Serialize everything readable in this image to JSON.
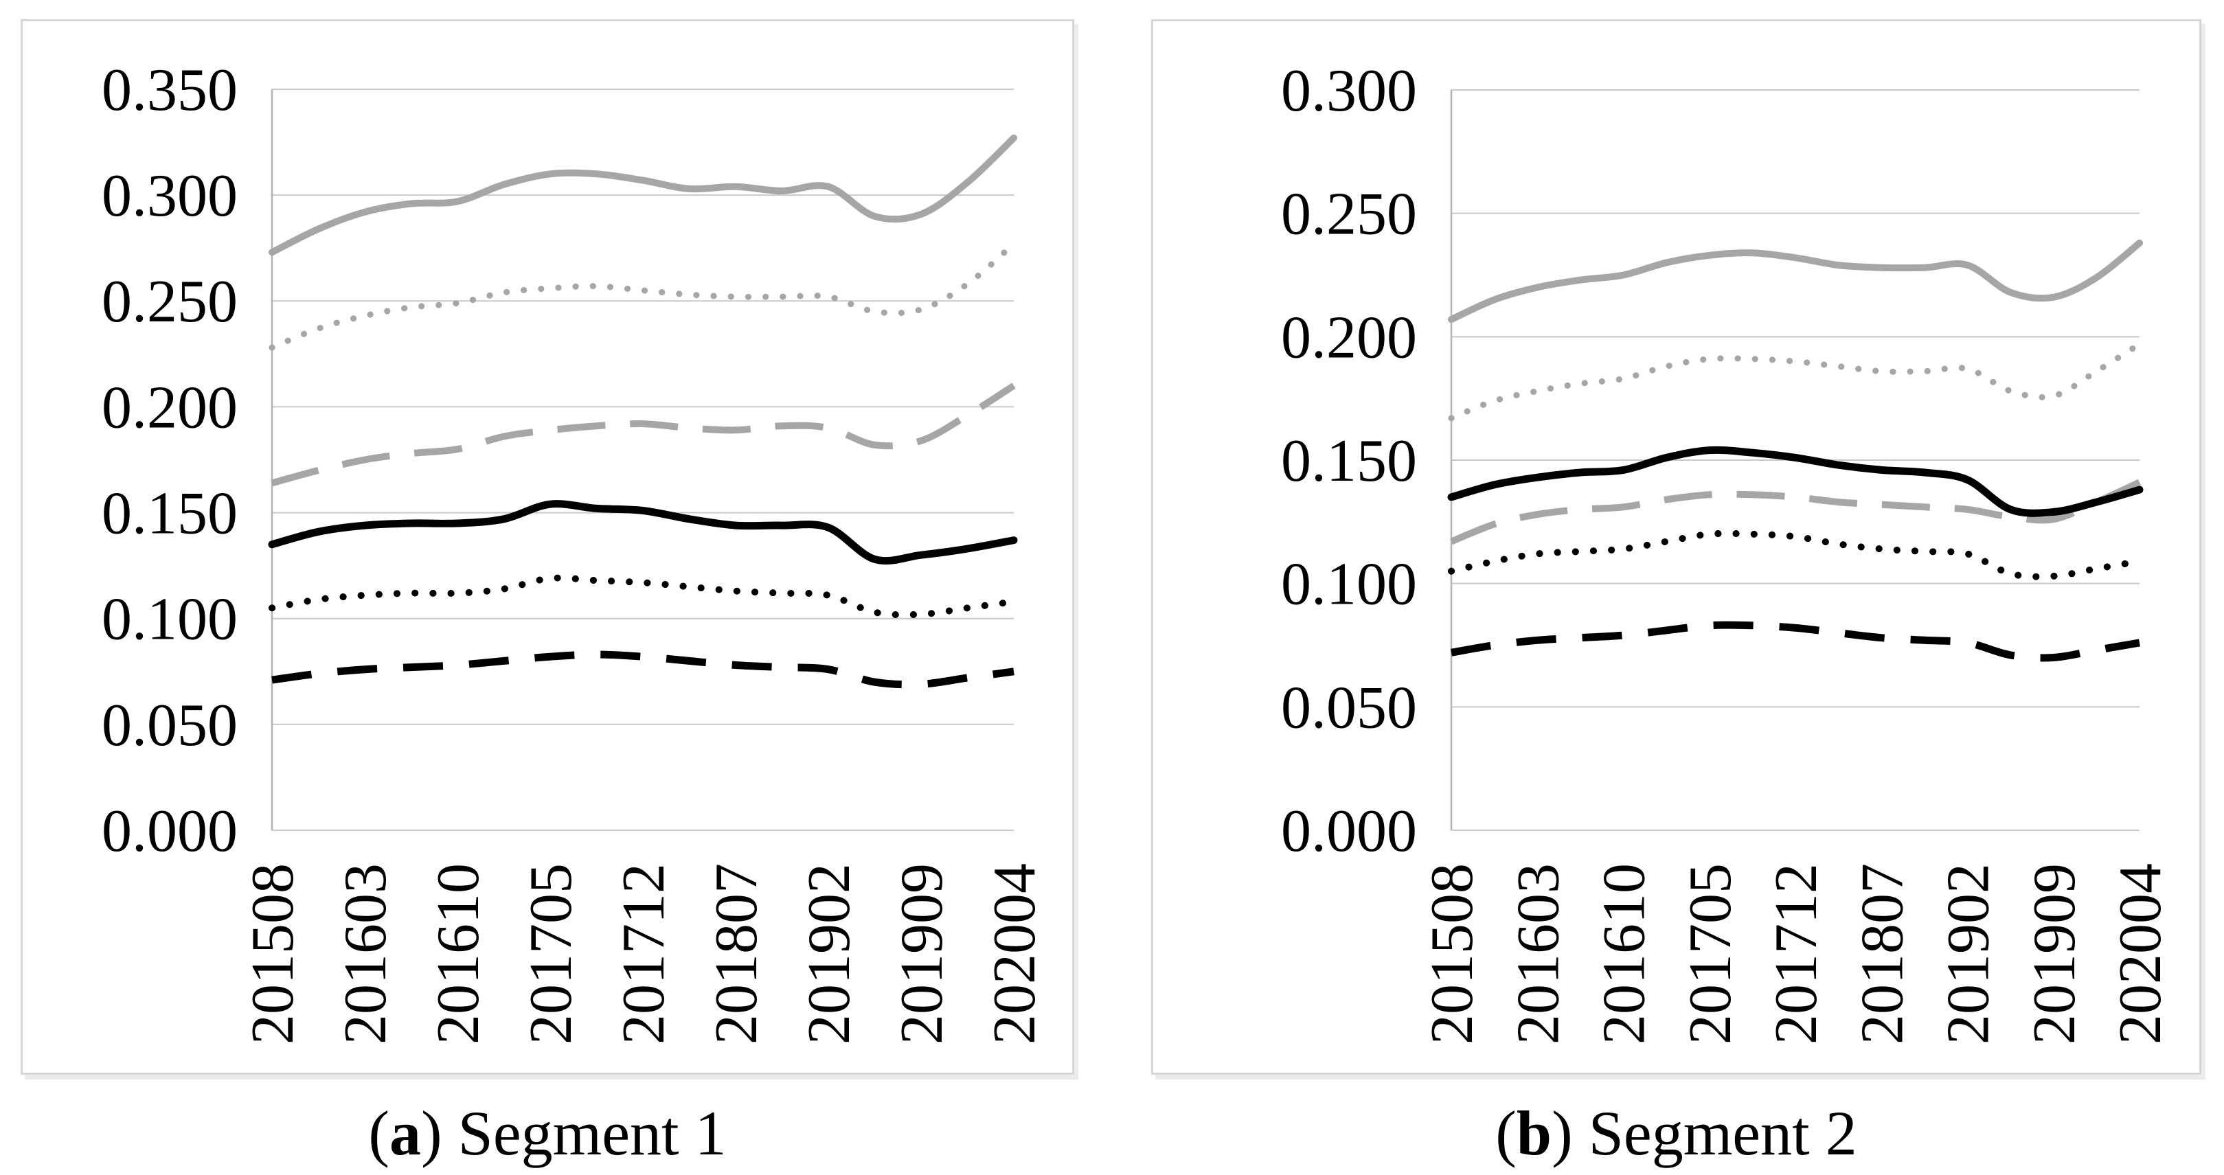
{
  "figure": {
    "captions": [
      {
        "prefix": "(",
        "letter": "a",
        "suffix": ") ",
        "title": "Segment 1"
      },
      {
        "prefix": "(",
        "letter": "b",
        "suffix": ") ",
        "title": "Segment 2"
      }
    ]
  },
  "colors": {
    "gray_series": "#a6a6a6",
    "black_series": "#000000",
    "gridline": "#c9c9c9",
    "axis_line": "#b3b3b3",
    "panel_border": "#d6d6d6",
    "text": "#000000"
  },
  "chart_data": [
    {
      "type": "line",
      "title": "(a) Segment 1",
      "xlabel": "",
      "ylabel": "",
      "ylim": [
        0.0,
        0.35
      ],
      "ytick_step": 0.05,
      "grid": true,
      "legend": "none",
      "y_labels": [
        "0.350",
        "0.300",
        "0.250",
        "0.200",
        "0.150",
        "0.100",
        "0.050",
        "0.000"
      ],
      "x_tick_labels": [
        "201508",
        "201603",
        "201610",
        "201705",
        "201712",
        "201807",
        "201902",
        "201909",
        "202004"
      ],
      "x": [
        "201508",
        "201512",
        "201603",
        "201607",
        "201610",
        "201702",
        "201705",
        "201709",
        "201712",
        "201804",
        "201807",
        "201811",
        "201902",
        "201906",
        "201909",
        "202001",
        "202004"
      ],
      "series": [
        {
          "name": "gray-solid",
          "color": "#a6a6a6",
          "style": "solid",
          "values": [
            0.273,
            0.284,
            0.292,
            0.296,
            0.297,
            0.305,
            0.31,
            0.31,
            0.307,
            0.303,
            0.304,
            0.302,
            0.304,
            0.29,
            0.291,
            0.306,
            0.327
          ]
        },
        {
          "name": "gray-dotted",
          "color": "#a6a6a6",
          "style": "dotted",
          "values": [
            0.228,
            0.237,
            0.243,
            0.247,
            0.249,
            0.254,
            0.256,
            0.257,
            0.255,
            0.253,
            0.252,
            0.252,
            0.252,
            0.245,
            0.246,
            0.258,
            0.277
          ]
        },
        {
          "name": "gray-dashed",
          "color": "#a6a6a6",
          "style": "dashed",
          "values": [
            0.164,
            0.17,
            0.175,
            0.178,
            0.18,
            0.186,
            0.189,
            0.191,
            0.192,
            0.19,
            0.189,
            0.191,
            0.19,
            0.182,
            0.184,
            0.196,
            0.21
          ]
        },
        {
          "name": "black-solid",
          "color": "#000000",
          "style": "solid",
          "values": [
            0.135,
            0.141,
            0.144,
            0.145,
            0.145,
            0.147,
            0.154,
            0.152,
            0.151,
            0.147,
            0.144,
            0.144,
            0.143,
            0.128,
            0.13,
            0.133,
            0.137
          ]
        },
        {
          "name": "black-dotted",
          "color": "#000000",
          "style": "dotted",
          "values": [
            0.105,
            0.109,
            0.111,
            0.112,
            0.112,
            0.114,
            0.119,
            0.118,
            0.117,
            0.115,
            0.113,
            0.112,
            0.111,
            0.103,
            0.102,
            0.105,
            0.108
          ]
        },
        {
          "name": "black-dashed",
          "color": "#000000",
          "style": "dashed",
          "values": [
            0.071,
            0.074,
            0.076,
            0.077,
            0.078,
            0.08,
            0.082,
            0.083,
            0.082,
            0.08,
            0.078,
            0.077,
            0.076,
            0.07,
            0.069,
            0.072,
            0.075
          ]
        }
      ]
    },
    {
      "type": "line",
      "title": "(b) Segment 2",
      "xlabel": "",
      "ylabel": "",
      "ylim": [
        0.0,
        0.3
      ],
      "ytick_step": 0.05,
      "grid": true,
      "legend": "none",
      "y_labels": [
        "0.300",
        "0.250",
        "0.200",
        "0.150",
        "0.100",
        "0.050",
        "0.000"
      ],
      "x_tick_labels": [
        "201508",
        "201603",
        "201610",
        "201705",
        "201712",
        "201807",
        "201902",
        "201909",
        "202004"
      ],
      "x": [
        "201508",
        "201512",
        "201603",
        "201607",
        "201610",
        "201702",
        "201705",
        "201709",
        "201712",
        "201804",
        "201807",
        "201811",
        "201902",
        "201906",
        "201909",
        "202001",
        "202004"
      ],
      "series": [
        {
          "name": "gray-solid",
          "color": "#a6a6a6",
          "style": "solid",
          "values": [
            0.207,
            0.215,
            0.22,
            0.223,
            0.225,
            0.23,
            0.233,
            0.234,
            0.232,
            0.229,
            0.228,
            0.228,
            0.229,
            0.218,
            0.216,
            0.224,
            0.238
          ]
        },
        {
          "name": "gray-dotted",
          "color": "#a6a6a6",
          "style": "dotted",
          "values": [
            0.167,
            0.174,
            0.178,
            0.181,
            0.183,
            0.188,
            0.191,
            0.191,
            0.19,
            0.188,
            0.186,
            0.186,
            0.187,
            0.178,
            0.176,
            0.186,
            0.197
          ]
        },
        {
          "name": "gray-dashed",
          "color": "#a6a6a6",
          "style": "dashed",
          "values": [
            0.117,
            0.124,
            0.128,
            0.13,
            0.131,
            0.134,
            0.136,
            0.136,
            0.135,
            0.133,
            0.132,
            0.131,
            0.13,
            0.127,
            0.126,
            0.133,
            0.141
          ]
        },
        {
          "name": "black-solid",
          "color": "#000000",
          "style": "solid",
          "values": [
            0.135,
            0.14,
            0.143,
            0.145,
            0.146,
            0.151,
            0.154,
            0.153,
            0.151,
            0.148,
            0.146,
            0.145,
            0.142,
            0.13,
            0.129,
            0.133,
            0.138
          ]
        },
        {
          "name": "black-dotted",
          "color": "#000000",
          "style": "dotted",
          "values": [
            0.105,
            0.109,
            0.112,
            0.113,
            0.114,
            0.117,
            0.12,
            0.12,
            0.119,
            0.116,
            0.114,
            0.113,
            0.112,
            0.104,
            0.103,
            0.106,
            0.109
          ]
        },
        {
          "name": "black-dashed",
          "color": "#000000",
          "style": "dashed",
          "values": [
            0.072,
            0.075,
            0.077,
            0.078,
            0.079,
            0.081,
            0.083,
            0.083,
            0.082,
            0.08,
            0.078,
            0.077,
            0.076,
            0.071,
            0.07,
            0.073,
            0.076
          ]
        }
      ]
    }
  ]
}
